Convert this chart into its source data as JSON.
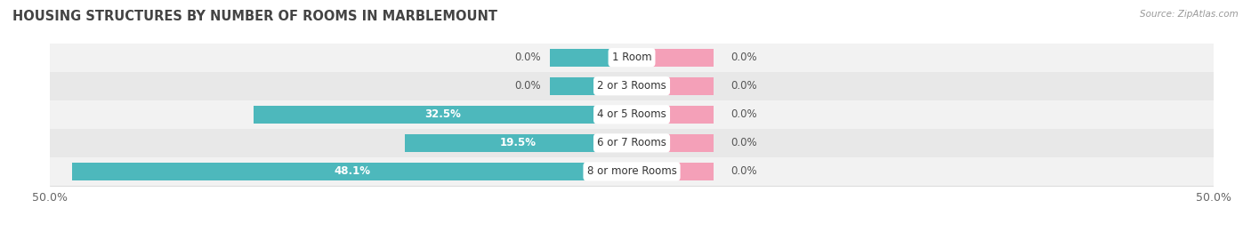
{
  "title": "HOUSING STRUCTURES BY NUMBER OF ROOMS IN MARBLEMOUNT",
  "source": "Source: ZipAtlas.com",
  "categories": [
    "1 Room",
    "2 or 3 Rooms",
    "4 or 5 Rooms",
    "6 or 7 Rooms",
    "8 or more Rooms"
  ],
  "owner_values": [
    0.0,
    0.0,
    32.5,
    19.5,
    48.1
  ],
  "renter_values": [
    0.0,
    0.0,
    0.0,
    0.0,
    0.0
  ],
  "owner_color": "#4db8bc",
  "renter_color": "#f4a0b8",
  "row_bg_odd": "#f2f2f2",
  "row_bg_even": "#e8e8e8",
  "x_min": -50.0,
  "x_max": 50.0,
  "renter_stub": 7.0,
  "owner_stub": 7.0,
  "title_fontsize": 10.5,
  "bar_fontsize": 8.5,
  "cat_fontsize": 8.5,
  "axis_fontsize": 9
}
